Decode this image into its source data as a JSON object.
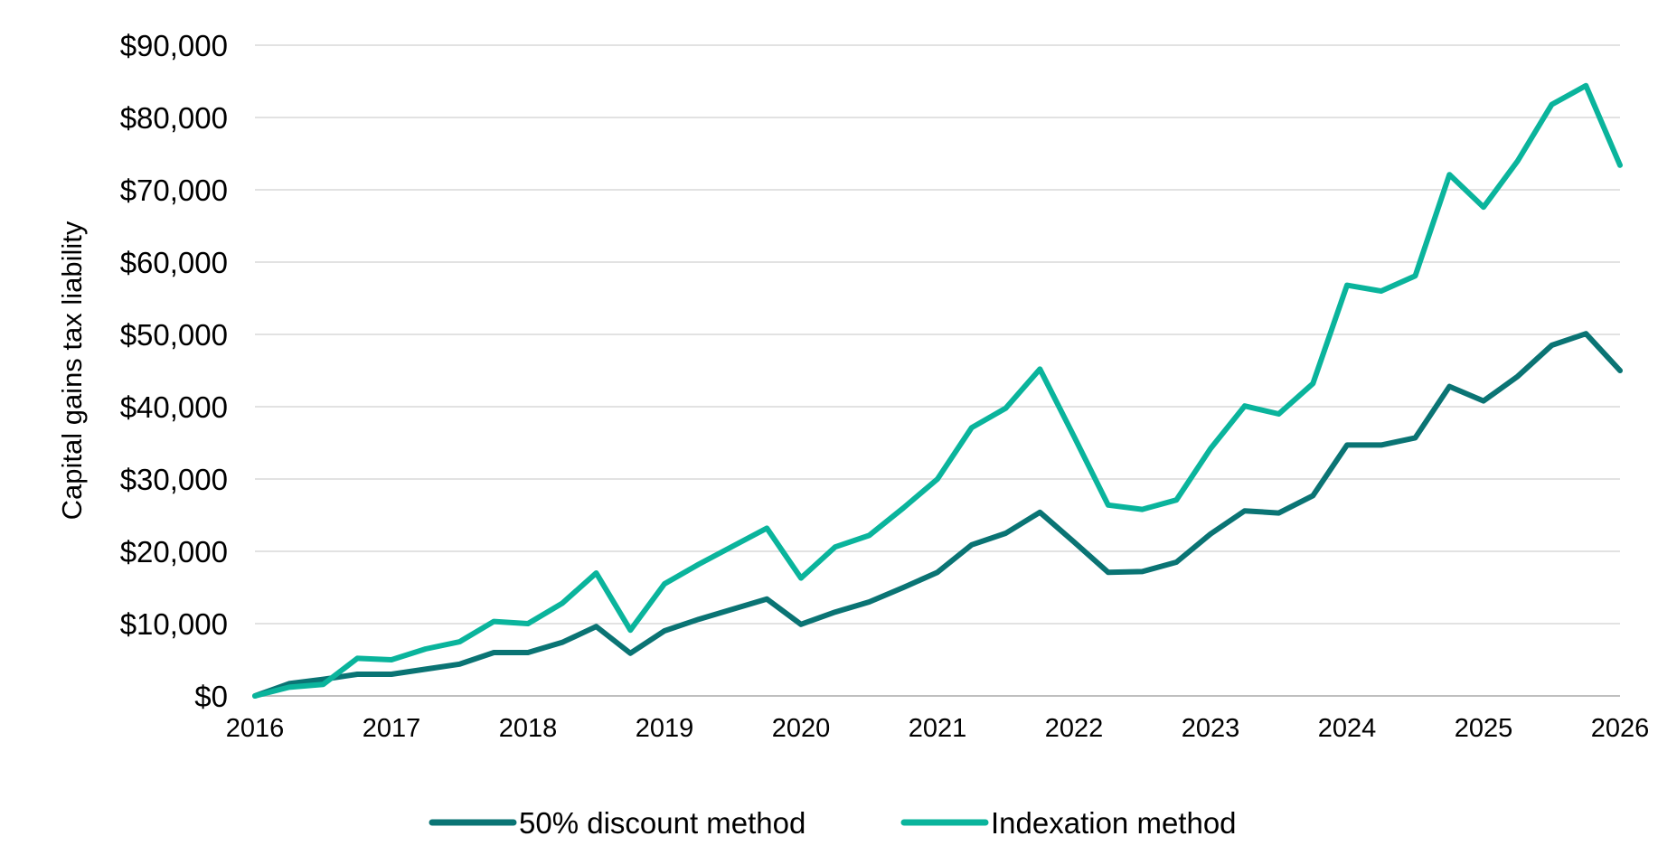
{
  "chart_data": {
    "type": "line",
    "xlabel": "",
    "ylabel": "Capital gains tax liability",
    "xlim": [
      2016,
      2026
    ],
    "ylim": [
      0,
      90000
    ],
    "x_ticks": [
      2016,
      2017,
      2018,
      2019,
      2020,
      2021,
      2022,
      2023,
      2024,
      2025,
      2026
    ],
    "x_tick_labels": [
      "2016",
      "2017",
      "2018",
      "2019",
      "2020",
      "2021",
      "2022",
      "2023",
      "2024",
      "2025",
      "2026"
    ],
    "y_ticks": [
      0,
      10000,
      20000,
      30000,
      40000,
      50000,
      60000,
      70000,
      80000,
      90000
    ],
    "y_tick_labels": [
      "$0",
      "$10,000",
      "$20,000",
      "$30,000",
      "$40,000",
      "$50,000",
      "$60,000",
      "$70,000",
      "$80,000",
      "$90,000"
    ],
    "grid": "horizontal",
    "legend_position": "bottom-center",
    "x": [
      2016.0,
      2016.25,
      2016.5,
      2016.75,
      2017.0,
      2017.25,
      2017.5,
      2017.75,
      2018.0,
      2018.25,
      2018.5,
      2018.75,
      2019.0,
      2019.25,
      2019.5,
      2019.75,
      2020.0,
      2020.25,
      2020.5,
      2020.75,
      2021.0,
      2021.25,
      2021.5,
      2021.75,
      2022.0,
      2022.25,
      2022.5,
      2022.75,
      2023.0,
      2023.25,
      2023.5,
      2023.75,
      2024.0,
      2024.25,
      2024.5,
      2024.75,
      2025.0,
      2025.25,
      2025.5,
      2025.75,
      2026.0
    ],
    "series": [
      {
        "name": "50% discount method",
        "color": "#0a7474",
        "values": [
          0,
          1700,
          2300,
          3000,
          3000,
          3700,
          4400,
          6000,
          6000,
          7400,
          9600,
          5900,
          9000,
          10600,
          12000,
          13400,
          9900,
          11600,
          13000,
          15000,
          17100,
          20900,
          22500,
          25400,
          21300,
          17100,
          17200,
          18500,
          22400,
          25600,
          25300,
          27700,
          34700,
          34700,
          35700,
          42800,
          40800,
          44200,
          48500,
          50100,
          45000
        ]
      },
      {
        "name": "Indexation method",
        "color": "#0ab49c",
        "values": [
          0,
          1200,
          1600,
          5200,
          5000,
          6500,
          7500,
          10300,
          10000,
          12800,
          17000,
          9100,
          15500,
          18200,
          20700,
          23200,
          16300,
          20600,
          22200,
          26000,
          30000,
          37100,
          39800,
          45200,
          35900,
          26400,
          25800,
          27100,
          34200,
          40100,
          39000,
          43200,
          56800,
          56000,
          58100,
          72100,
          67600,
          74000,
          81800,
          84400,
          73400
        ]
      }
    ]
  }
}
